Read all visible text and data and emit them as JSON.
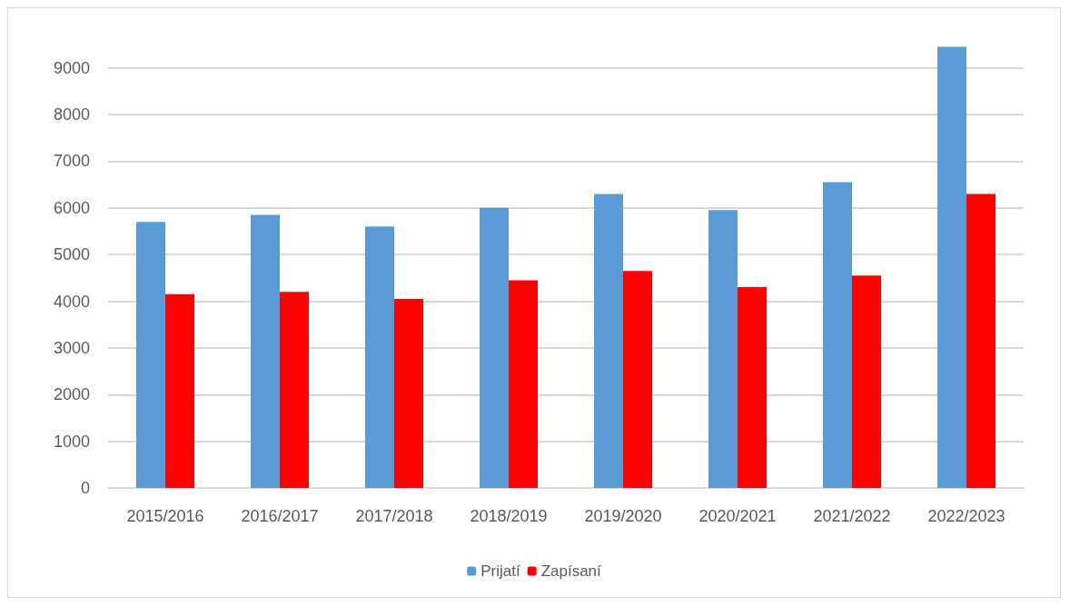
{
  "chart_data": {
    "type": "bar",
    "categories": [
      "2015/2016",
      "2016/2017",
      "2017/2018",
      "2018/2019",
      "2019/2020",
      "2020/2021",
      "2021/2022",
      "2022/2023"
    ],
    "series": [
      {
        "name": "Prijatí",
        "color": "#5b9bd5",
        "values": [
          5700,
          5850,
          5600,
          6000,
          6300,
          5950,
          6550,
          9450
        ]
      },
      {
        "name": "Zapísaní",
        "color": "#ff0000",
        "values": [
          4150,
          4200,
          4050,
          4450,
          4650,
          4300,
          4550,
          6300
        ]
      }
    ],
    "ylim": [
      0,
      9500
    ],
    "yticks": [
      0,
      1000,
      2000,
      3000,
      4000,
      5000,
      6000,
      7000,
      8000,
      9000
    ],
    "grid": "y",
    "legend": "bottom"
  }
}
